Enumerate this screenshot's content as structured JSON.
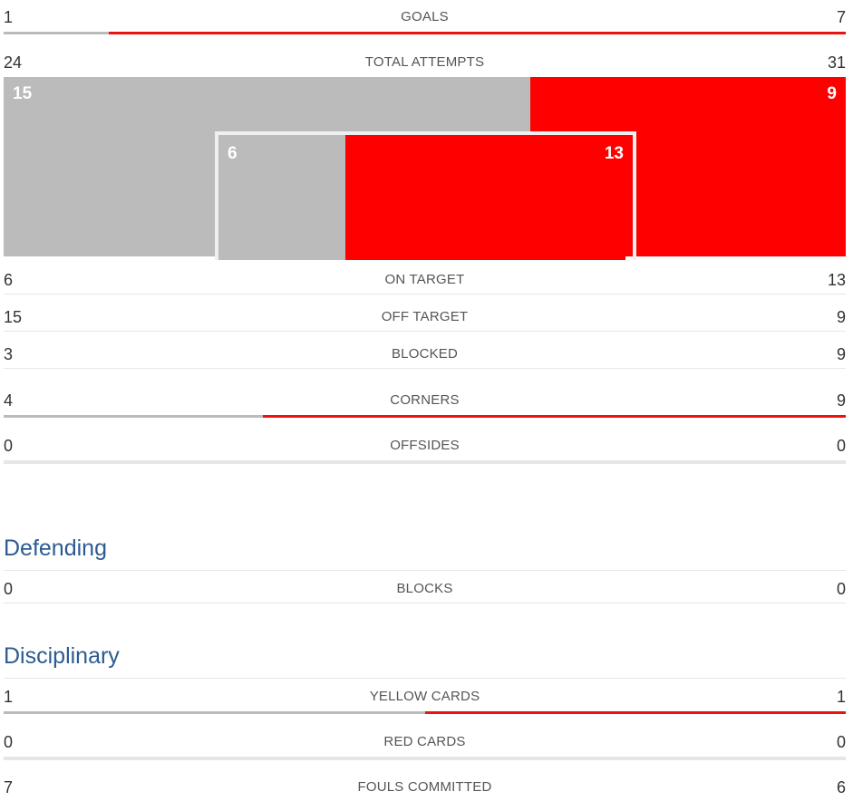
{
  "colors": {
    "home": "#bbbbbb",
    "away": "#ee1111",
    "section_title": "#2b5b92"
  },
  "stats": {
    "goals": {
      "label": "GOALS",
      "home": "1",
      "away": "7",
      "home_share": 0.125
    },
    "total_attempts": {
      "label": "TOTAL ATTEMPTS",
      "home": "24",
      "away": "31"
    },
    "attempts_graphic": {
      "off_target_home": "15",
      "off_target_away": "9",
      "off_target_home_share": 0.625,
      "on_target_home": "6",
      "on_target_away": "13",
      "on_target_home_share": 0.316
    },
    "on_target": {
      "label": "ON TARGET",
      "home": "6",
      "away": "13"
    },
    "off_target": {
      "label": "OFF TARGET",
      "home": "15",
      "away": "9"
    },
    "blocked": {
      "label": "BLOCKED",
      "home": "3",
      "away": "9"
    },
    "corners": {
      "label": "CORNERS",
      "home": "4",
      "away": "9",
      "home_share": 0.3077
    },
    "offsides": {
      "label": "OFFSIDES",
      "home": "0",
      "away": "0"
    }
  },
  "defending": {
    "title": "Defending",
    "blocks": {
      "label": "BLOCKS",
      "home": "0",
      "away": "0"
    }
  },
  "disciplinary": {
    "title": "Disciplinary",
    "yellow_cards": {
      "label": "YELLOW CARDS",
      "home": "1",
      "away": "1",
      "home_share": 0.5
    },
    "red_cards": {
      "label": "RED CARDS",
      "home": "0",
      "away": "0"
    },
    "fouls_committed": {
      "label": "FOULS COMMITTED",
      "home": "7",
      "away": "6"
    }
  }
}
